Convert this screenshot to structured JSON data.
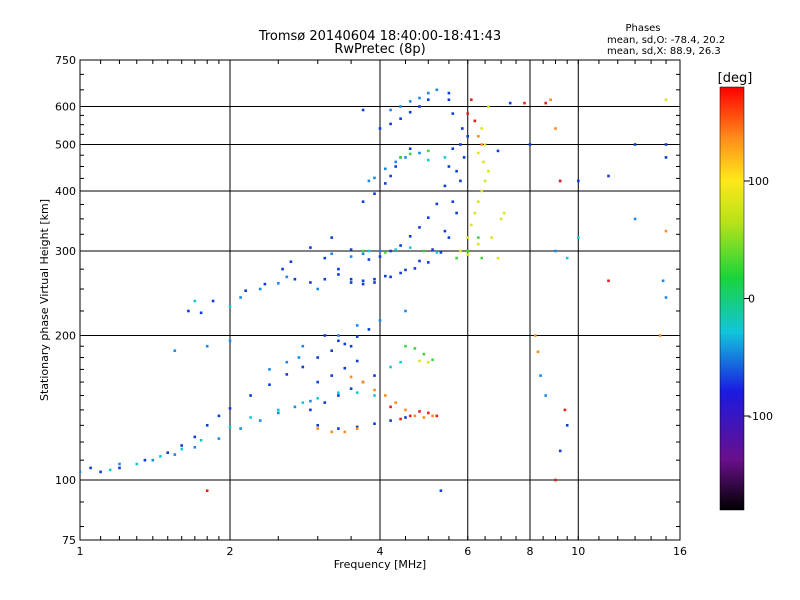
{
  "chart_data": {
    "type": "scatter",
    "title": "Tromsø 20140604 18:40:00-18:41:43",
    "subtitle": "RwPretec (8p)",
    "xlabel": "Frequency [MHz]",
    "ylabel": "Stationary phase Virtual Height [km]",
    "x_scale": "log",
    "y_scale": "log",
    "xlim": [
      1,
      16
    ],
    "ylim": [
      75,
      750
    ],
    "x_ticks": [
      "1",
      "2",
      "4",
      "6",
      "8",
      "10",
      "16"
    ],
    "y_ticks": [
      "75",
      "100",
      "200",
      "300",
      "400",
      "500",
      "600",
      "750"
    ],
    "x_tick_values": [
      1,
      2,
      4,
      6,
      8,
      10,
      16
    ],
    "y_tick_values": [
      75,
      100,
      200,
      300,
      400,
      500,
      600,
      750
    ],
    "grid": true,
    "phases_info": {
      "title": "Phases",
      "line_o": "mean, sd,O: -78.4, 20.2",
      "line_x": "mean, sd,X:  88.9, 26.3"
    },
    "colorbar": {
      "label": "[deg]",
      "ticks": [
        "100",
        "0",
        "-100"
      ],
      "tick_values": [
        100,
        0,
        -100
      ],
      "range": [
        -180,
        180
      ]
    },
    "series": [
      {
        "phase_deg": -95,
        "color": "#0b3dd9",
        "points": [
          [
            1.05,
            106
          ],
          [
            1.1,
            104
          ],
          [
            1.2,
            106
          ],
          [
            1.35,
            110
          ],
          [
            1.5,
            114
          ],
          [
            1.6,
            118
          ],
          [
            1.7,
            123
          ],
          [
            1.8,
            130
          ],
          [
            1.9,
            136
          ],
          [
            2.0,
            141
          ],
          [
            2.2,
            150
          ],
          [
            2.4,
            158
          ],
          [
            2.6,
            166
          ],
          [
            2.8,
            172
          ],
          [
            3.0,
            180
          ],
          [
            3.2,
            186
          ],
          [
            3.4,
            192
          ],
          [
            3.6,
            199
          ],
          [
            3.8,
            206
          ],
          [
            2.9,
            140
          ],
          [
            3.1,
            145
          ],
          [
            3.3,
            150
          ],
          [
            3.5,
            155
          ],
          [
            3.7,
            160
          ],
          [
            3.9,
            165
          ],
          [
            3.0,
            160
          ],
          [
            3.2,
            165
          ],
          [
            3.4,
            171
          ],
          [
            3.6,
            177
          ],
          [
            3.0,
            130
          ],
          [
            3.3,
            128
          ],
          [
            3.6,
            129
          ],
          [
            3.9,
            131
          ],
          [
            4.2,
            133
          ],
          [
            4.5,
            135
          ],
          [
            3.1,
            200
          ],
          [
            3.3,
            195
          ],
          [
            3.5,
            190
          ],
          [
            2.7,
            262
          ],
          [
            2.9,
            258
          ],
          [
            3.1,
            262
          ],
          [
            3.3,
            268
          ],
          [
            3.5,
            258
          ],
          [
            3.7,
            260
          ],
          [
            3.9,
            262
          ],
          [
            4.1,
            266
          ],
          [
            4.4,
            270
          ],
          [
            4.7,
            276
          ],
          [
            5.0,
            284
          ],
          [
            5.3,
            298
          ],
          [
            5.5,
            320
          ],
          [
            5.7,
            360
          ],
          [
            5.8,
            420
          ],
          [
            5.9,
            470
          ],
          [
            6.0,
            520
          ],
          [
            2.9,
            305
          ],
          [
            3.1,
            290
          ],
          [
            3.3,
            275
          ],
          [
            3.5,
            262
          ],
          [
            3.7,
            256
          ],
          [
            3.9,
            258
          ],
          [
            4.2,
            265
          ],
          [
            4.5,
            274
          ],
          [
            4.8,
            286
          ],
          [
            5.1,
            302
          ],
          [
            5.4,
            330
          ],
          [
            5.6,
            380
          ],
          [
            5.7,
            440
          ],
          [
            5.8,
            500
          ],
          [
            5.85,
            540
          ],
          [
            3.2,
            320
          ],
          [
            3.5,
            302
          ],
          [
            3.8,
            288
          ],
          [
            4.0,
            292
          ],
          [
            4.2,
            300
          ],
          [
            4.4,
            308
          ],
          [
            4.6,
            322
          ],
          [
            4.8,
            336
          ],
          [
            5.0,
            352
          ],
          [
            5.2,
            376
          ],
          [
            5.4,
            410
          ],
          [
            5.5,
            450
          ],
          [
            5.6,
            490
          ],
          [
            3.7,
            380
          ],
          [
            3.9,
            395
          ],
          [
            4.1,
            415
          ],
          [
            4.2,
            430
          ],
          [
            4.3,
            450
          ],
          [
            4.4,
            470
          ],
          [
            4.6,
            490
          ],
          [
            4.0,
            540
          ],
          [
            4.2,
            552
          ],
          [
            4.4,
            566
          ],
          [
            4.6,
            584
          ],
          [
            4.8,
            600
          ],
          [
            5.0,
            620
          ],
          [
            5.5,
            640
          ],
          [
            1.65,
            225
          ],
          [
            1.75,
            223
          ],
          [
            1.85,
            236
          ],
          [
            2.15,
            248
          ],
          [
            2.35,
            256
          ],
          [
            2.55,
            275
          ],
          [
            2.65,
            285
          ],
          [
            3.7,
            590
          ],
          [
            5.6,
            580
          ],
          [
            5.5,
            620
          ],
          [
            8.0,
            500
          ],
          [
            9.2,
            420
          ],
          [
            11.5,
            430
          ],
          [
            15.0,
            470
          ],
          [
            15.0,
            500
          ],
          [
            13.0,
            500
          ],
          [
            9.5,
            130
          ],
          [
            9.2,
            115
          ],
          [
            10.0,
            420
          ],
          [
            5.3,
            95
          ],
          [
            6.9,
            485
          ],
          [
            7.3,
            610
          ]
        ]
      },
      {
        "phase_deg": -60,
        "color": "#1a8ae8",
        "points": [
          [
            1.0,
            104
          ],
          [
            1.2,
            108
          ],
          [
            1.4,
            110
          ],
          [
            1.55,
            113
          ],
          [
            1.7,
            117
          ],
          [
            1.9,
            122
          ],
          [
            2.1,
            128
          ],
          [
            2.3,
            133
          ],
          [
            2.5,
            138
          ],
          [
            2.7,
            142
          ],
          [
            2.9,
            146
          ],
          [
            2.4,
            170
          ],
          [
            2.6,
            176
          ],
          [
            2.75,
            180
          ],
          [
            2.8,
            190
          ],
          [
            2.1,
            240
          ],
          [
            2.3,
            250
          ],
          [
            2.5,
            257
          ],
          [
            2.6,
            265
          ],
          [
            3.0,
            250
          ],
          [
            3.2,
            296
          ],
          [
            3.5,
            292
          ],
          [
            3.7,
            296
          ],
          [
            4.0,
            300
          ],
          [
            4.2,
            590
          ],
          [
            4.4,
            600
          ],
          [
            4.6,
            615
          ],
          [
            4.8,
            625
          ],
          [
            5.0,
            640
          ],
          [
            5.2,
            650
          ],
          [
            3.8,
            420
          ],
          [
            3.9,
            426
          ],
          [
            4.1,
            445
          ],
          [
            4.3,
            460
          ],
          [
            4.5,
            470
          ],
          [
            4.8,
            480
          ],
          [
            1.55,
            186
          ],
          [
            1.8,
            190
          ],
          [
            2.0,
            195
          ],
          [
            3.3,
            200
          ],
          [
            3.6,
            210
          ],
          [
            4.0,
            215
          ],
          [
            4.5,
            225
          ],
          [
            8.4,
            165
          ],
          [
            8.6,
            150
          ],
          [
            9.0,
            300
          ],
          [
            13.0,
            350
          ],
          [
            14.8,
            260
          ],
          [
            15.0,
            240
          ]
        ]
      },
      {
        "phase_deg": -20,
        "color": "#14c9d6",
        "points": [
          [
            1.15,
            105
          ],
          [
            1.3,
            108
          ],
          [
            1.45,
            112
          ],
          [
            1.6,
            116
          ],
          [
            1.75,
            121
          ],
          [
            2.0,
            129
          ],
          [
            2.2,
            135
          ],
          [
            2.5,
            140
          ],
          [
            2.8,
            145
          ],
          [
            3.0,
            148
          ],
          [
            3.3,
            152
          ],
          [
            3.6,
            152
          ],
          [
            3.9,
            150
          ],
          [
            4.2,
            172
          ],
          [
            4.4,
            176
          ],
          [
            3.8,
            300
          ],
          [
            4.3,
            302
          ],
          [
            4.6,
            305
          ],
          [
            5.2,
            298
          ],
          [
            5.0,
            464
          ],
          [
            5.4,
            470
          ],
          [
            1.7,
            236
          ],
          [
            2.0,
            230
          ],
          [
            9.5,
            290
          ],
          [
            10.0,
            320
          ]
        ]
      },
      {
        "phase_deg": 30,
        "color": "#3fd43a",
        "points": [
          [
            4.4,
            470
          ],
          [
            4.6,
            478
          ],
          [
            5.0,
            485
          ],
          [
            4.5,
            190
          ],
          [
            4.7,
            188
          ],
          [
            4.9,
            183
          ],
          [
            5.1,
            178
          ],
          [
            3.7,
            300
          ],
          [
            4.9,
            300
          ],
          [
            5.7,
            290
          ],
          [
            6.0,
            300
          ],
          [
            4.1,
            298
          ],
          [
            6.3,
            320
          ],
          [
            6.4,
            290
          ]
        ]
      },
      {
        "phase_deg": 90,
        "color": "#d9e81c",
        "points": [
          [
            5.8,
            300
          ],
          [
            6.0,
            320
          ],
          [
            6.1,
            340
          ],
          [
            6.2,
            360
          ],
          [
            6.3,
            380
          ],
          [
            6.4,
            400
          ],
          [
            6.5,
            420
          ],
          [
            6.6,
            440
          ],
          [
            6.45,
            460
          ],
          [
            6.3,
            480
          ],
          [
            6.5,
            500
          ],
          [
            6.4,
            540
          ],
          [
            6.6,
            600
          ],
          [
            7.0,
            350
          ],
          [
            7.1,
            360
          ],
          [
            4.8,
            177
          ],
          [
            5.0,
            176
          ],
          [
            15.0,
            620
          ],
          [
            6.9,
            290
          ],
          [
            6.7,
            320
          ],
          [
            6.3,
            310
          ],
          [
            6.0,
            295
          ]
        ]
      },
      {
        "phase_deg": 130,
        "color": "#ff8c1a",
        "points": [
          [
            3.5,
            164
          ],
          [
            3.7,
            160
          ],
          [
            3.9,
            154
          ],
          [
            4.1,
            150
          ],
          [
            4.3,
            145
          ],
          [
            4.5,
            140
          ],
          [
            4.7,
            136
          ],
          [
            4.9,
            135
          ],
          [
            5.1,
            136
          ],
          [
            3.0,
            128
          ],
          [
            3.2,
            126
          ],
          [
            3.4,
            126
          ],
          [
            3.6,
            128
          ],
          [
            6.2,
            560
          ],
          [
            6.3,
            520
          ],
          [
            6.4,
            500
          ],
          [
            8.2,
            200
          ],
          [
            8.3,
            185
          ],
          [
            8.8,
            620
          ],
          [
            9.0,
            540
          ],
          [
            15.0,
            330
          ],
          [
            14.6,
            200
          ]
        ]
      },
      {
        "phase_deg": 165,
        "color": "#e8201a",
        "points": [
          [
            4.4,
            134
          ],
          [
            4.6,
            136
          ],
          [
            4.8,
            139
          ],
          [
            5.0,
            138
          ],
          [
            5.2,
            136
          ],
          [
            4.2,
            142
          ],
          [
            6.0,
            580
          ],
          [
            6.1,
            620
          ],
          [
            6.2,
            560
          ],
          [
            7.8,
            610
          ],
          [
            8.6,
            610
          ],
          [
            9.2,
            420
          ],
          [
            9.4,
            140
          ],
          [
            9.0,
            100
          ],
          [
            1.8,
            95
          ],
          [
            11.5,
            260
          ]
        ]
      }
    ]
  }
}
